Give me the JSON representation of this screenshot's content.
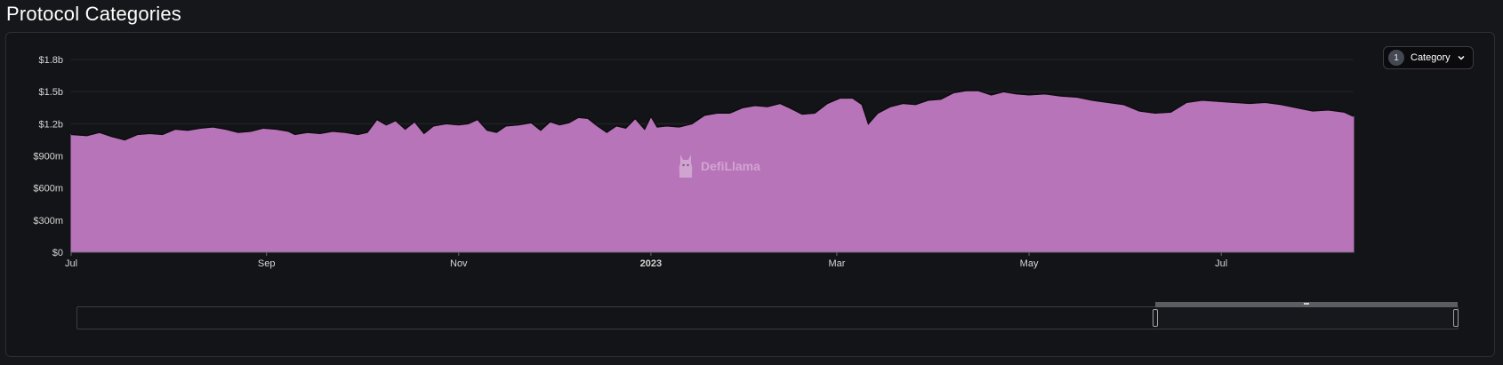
{
  "page": {
    "title": "Protocol Categories"
  },
  "category_select": {
    "count": "1",
    "label": "Category",
    "chevron_icon": "chevron-down-icon"
  },
  "watermark": {
    "text": "DefiLlama",
    "icon": "llama-logo-icon"
  },
  "colors": {
    "area_fill": "#b874b9",
    "area_line": "#b874b9",
    "grid": "#24262b",
    "axis_text": "#d6d6d6"
  },
  "zoom": {
    "start": 0.78,
    "end": 1.0
  },
  "chart_data": {
    "type": "area",
    "title": "",
    "xlabel": "",
    "ylabel": "",
    "ylim": [
      0,
      1800000000
    ],
    "grid": true,
    "legend": "none",
    "y_ticks": [
      {
        "value": 0,
        "label": "$0"
      },
      {
        "value": 300000000,
        "label": "$300m"
      },
      {
        "value": 600000000,
        "label": "$600m"
      },
      {
        "value": 900000000,
        "label": "$900m"
      },
      {
        "value": 1200000000,
        "label": "$1.2b"
      },
      {
        "value": 1500000000,
        "label": "$1.5b"
      },
      {
        "value": 1800000000,
        "label": "$1.8b"
      }
    ],
    "x_ticks": [
      {
        "date": "2022-07-01",
        "label": "Jul",
        "bold": false
      },
      {
        "date": "2022-09-01",
        "label": "Sep",
        "bold": false
      },
      {
        "date": "2022-11-01",
        "label": "Nov",
        "bold": false
      },
      {
        "date": "2023-01-01",
        "label": "2023",
        "bold": true
      },
      {
        "date": "2023-03-01",
        "label": "Mar",
        "bold": false
      },
      {
        "date": "2023-05-01",
        "label": "May",
        "bold": false
      },
      {
        "date": "2023-07-01",
        "label": "Jul",
        "bold": false
      }
    ],
    "series": [
      {
        "points": [
          [
            "2022-07-01",
            1100000000
          ],
          [
            "2022-07-06",
            1090000000
          ],
          [
            "2022-07-10",
            1120000000
          ],
          [
            "2022-07-14",
            1080000000
          ],
          [
            "2022-07-18",
            1050000000
          ],
          [
            "2022-07-22",
            1100000000
          ],
          [
            "2022-07-26",
            1110000000
          ],
          [
            "2022-07-30",
            1100000000
          ],
          [
            "2022-08-03",
            1150000000
          ],
          [
            "2022-08-07",
            1140000000
          ],
          [
            "2022-08-11",
            1160000000
          ],
          [
            "2022-08-15",
            1170000000
          ],
          [
            "2022-08-19",
            1150000000
          ],
          [
            "2022-08-23",
            1120000000
          ],
          [
            "2022-08-27",
            1130000000
          ],
          [
            "2022-08-31",
            1160000000
          ],
          [
            "2022-09-04",
            1150000000
          ],
          [
            "2022-09-08",
            1130000000
          ],
          [
            "2022-09-10",
            1100000000
          ],
          [
            "2022-09-14",
            1120000000
          ],
          [
            "2022-09-18",
            1110000000
          ],
          [
            "2022-09-22",
            1130000000
          ],
          [
            "2022-09-26",
            1120000000
          ],
          [
            "2022-09-30",
            1100000000
          ],
          [
            "2022-10-03",
            1120000000
          ],
          [
            "2022-10-06",
            1240000000
          ],
          [
            "2022-10-09",
            1190000000
          ],
          [
            "2022-10-12",
            1230000000
          ],
          [
            "2022-10-15",
            1150000000
          ],
          [
            "2022-10-18",
            1220000000
          ],
          [
            "2022-10-21",
            1110000000
          ],
          [
            "2022-10-24",
            1180000000
          ],
          [
            "2022-10-28",
            1200000000
          ],
          [
            "2022-11-01",
            1190000000
          ],
          [
            "2022-11-04",
            1200000000
          ],
          [
            "2022-11-07",
            1240000000
          ],
          [
            "2022-11-10",
            1140000000
          ],
          [
            "2022-11-13",
            1120000000
          ],
          [
            "2022-11-16",
            1180000000
          ],
          [
            "2022-11-20",
            1190000000
          ],
          [
            "2022-11-24",
            1210000000
          ],
          [
            "2022-11-27",
            1140000000
          ],
          [
            "2022-11-30",
            1220000000
          ],
          [
            "2022-12-03",
            1190000000
          ],
          [
            "2022-12-06",
            1210000000
          ],
          [
            "2022-12-09",
            1260000000
          ],
          [
            "2022-12-12",
            1250000000
          ],
          [
            "2022-12-15",
            1180000000
          ],
          [
            "2022-12-18",
            1120000000
          ],
          [
            "2022-12-21",
            1180000000
          ],
          [
            "2022-12-24",
            1160000000
          ],
          [
            "2022-12-27",
            1250000000
          ],
          [
            "2022-12-30",
            1150000000
          ],
          [
            "2023-01-01",
            1270000000
          ],
          [
            "2023-01-03",
            1170000000
          ],
          [
            "2023-01-06",
            1180000000
          ],
          [
            "2023-01-10",
            1170000000
          ],
          [
            "2023-01-14",
            1200000000
          ],
          [
            "2023-01-18",
            1280000000
          ],
          [
            "2023-01-22",
            1300000000
          ],
          [
            "2023-01-26",
            1300000000
          ],
          [
            "2023-01-30",
            1350000000
          ],
          [
            "2023-02-03",
            1370000000
          ],
          [
            "2023-02-07",
            1360000000
          ],
          [
            "2023-02-11",
            1390000000
          ],
          [
            "2023-02-14",
            1350000000
          ],
          [
            "2023-02-18",
            1290000000
          ],
          [
            "2023-02-22",
            1300000000
          ],
          [
            "2023-02-26",
            1390000000
          ],
          [
            "2023-03-02",
            1440000000
          ],
          [
            "2023-03-06",
            1440000000
          ],
          [
            "2023-03-09",
            1380000000
          ],
          [
            "2023-03-11",
            1200000000
          ],
          [
            "2023-03-14",
            1300000000
          ],
          [
            "2023-03-18",
            1360000000
          ],
          [
            "2023-03-22",
            1390000000
          ],
          [
            "2023-03-26",
            1380000000
          ],
          [
            "2023-03-30",
            1420000000
          ],
          [
            "2023-04-03",
            1430000000
          ],
          [
            "2023-04-07",
            1490000000
          ],
          [
            "2023-04-11",
            1510000000
          ],
          [
            "2023-04-15",
            1510000000
          ],
          [
            "2023-04-19",
            1470000000
          ],
          [
            "2023-04-23",
            1500000000
          ],
          [
            "2023-04-27",
            1480000000
          ],
          [
            "2023-05-01",
            1470000000
          ],
          [
            "2023-05-06",
            1480000000
          ],
          [
            "2023-05-11",
            1460000000
          ],
          [
            "2023-05-16",
            1450000000
          ],
          [
            "2023-05-21",
            1420000000
          ],
          [
            "2023-05-26",
            1400000000
          ],
          [
            "2023-05-31",
            1380000000
          ],
          [
            "2023-06-05",
            1320000000
          ],
          [
            "2023-06-10",
            1300000000
          ],
          [
            "2023-06-15",
            1310000000
          ],
          [
            "2023-06-20",
            1400000000
          ],
          [
            "2023-06-25",
            1420000000
          ],
          [
            "2023-06-30",
            1410000000
          ],
          [
            "2023-07-05",
            1400000000
          ],
          [
            "2023-07-10",
            1390000000
          ],
          [
            "2023-07-15",
            1400000000
          ],
          [
            "2023-07-20",
            1380000000
          ],
          [
            "2023-07-25",
            1350000000
          ],
          [
            "2023-07-30",
            1320000000
          ],
          [
            "2023-08-04",
            1330000000
          ],
          [
            "2023-08-09",
            1310000000
          ],
          [
            "2023-08-12",
            1270000000
          ]
        ]
      }
    ]
  }
}
